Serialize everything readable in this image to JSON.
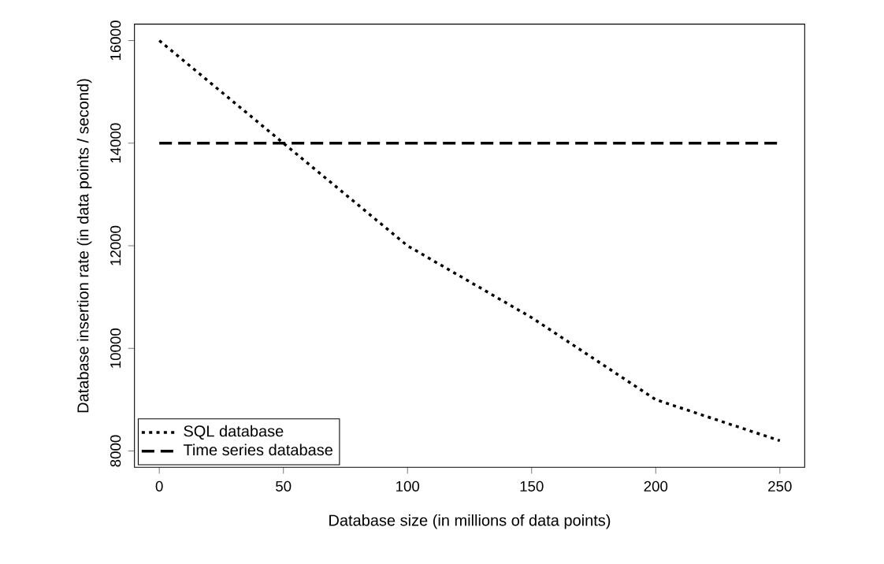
{
  "chart_data": {
    "type": "line",
    "xlabel": "Database size (in millions of data points)",
    "ylabel": "Database insertion rate (in data points / second)",
    "xlim": [
      -10,
      260
    ],
    "ylim": [
      7680,
      16320
    ],
    "xticks": [
      0,
      50,
      100,
      150,
      200,
      250
    ],
    "yticks": [
      8000,
      10000,
      12000,
      14000,
      16000
    ],
    "grid": false,
    "legend": "bottom left",
    "series": [
      {
        "name": "SQL database",
        "color": "#000000",
        "line_style": "dotted",
        "x": [
          0,
          50,
          100,
          150,
          200,
          250
        ],
        "values": [
          16000,
          14000,
          12000,
          10600,
          9000,
          8200
        ]
      },
      {
        "name": "Time series database",
        "color": "#000000",
        "line_style": "dashed",
        "x": [
          0,
          250
        ],
        "values": [
          14000,
          14000
        ]
      }
    ]
  }
}
